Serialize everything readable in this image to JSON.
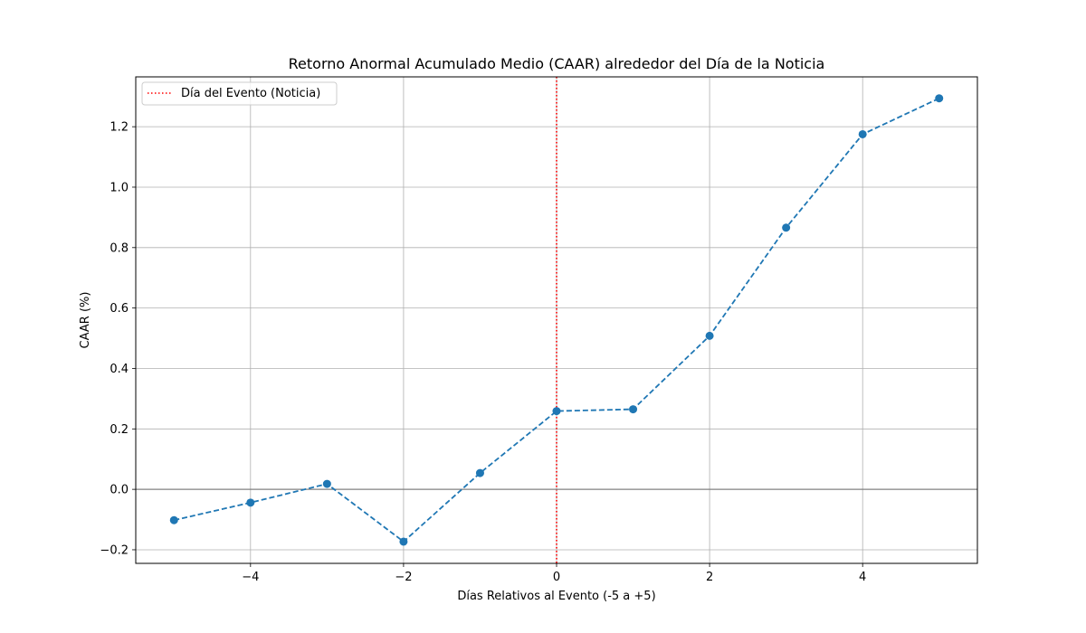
{
  "chart_data": {
    "type": "line",
    "title": "Retorno Anormal Acumulado Medio (CAAR) alrededor del Día de la Noticia",
    "xlabel": "Días Relativos al Evento (-5 a +5)",
    "ylabel": "CAAR (%)",
    "xlim": [
      -5.5,
      5.5
    ],
    "ylim": [
      -0.245,
      1.365
    ],
    "x_ticks": [
      -4,
      -2,
      0,
      2,
      4
    ],
    "x_tick_labels": [
      "−4",
      "−2",
      "0",
      "2",
      "4"
    ],
    "y_ticks": [
      -0.2,
      0.0,
      0.2,
      0.4,
      0.6,
      0.8,
      1.0,
      1.2
    ],
    "y_tick_labels": [
      "−0.2",
      "0.0",
      "0.2",
      "0.4",
      "0.6",
      "0.8",
      "1.0",
      "1.2"
    ],
    "grid": true,
    "series": [
      {
        "x": [
          -5,
          -4,
          -3,
          -2,
          -1,
          0,
          1,
          2,
          3,
          4,
          5
        ],
        "values": [
          -0.102,
          -0.044,
          0.018,
          -0.173,
          0.054,
          0.259,
          0.265,
          0.508,
          0.866,
          1.175,
          1.294
        ],
        "color": "#1f77b4",
        "linestyle": "dashed",
        "marker": "circle"
      }
    ],
    "reference_lines": [
      {
        "orientation": "vertical",
        "value": 0,
        "color": "#ff0000",
        "linestyle": "dotted",
        "label": "Día del Evento (Noticia)"
      },
      {
        "orientation": "horizontal",
        "value": 0,
        "color": "#808080",
        "linestyle": "solid"
      }
    ],
    "legend": {
      "placement": "top-left",
      "entries": [
        "Día del Evento (Noticia)"
      ]
    }
  }
}
